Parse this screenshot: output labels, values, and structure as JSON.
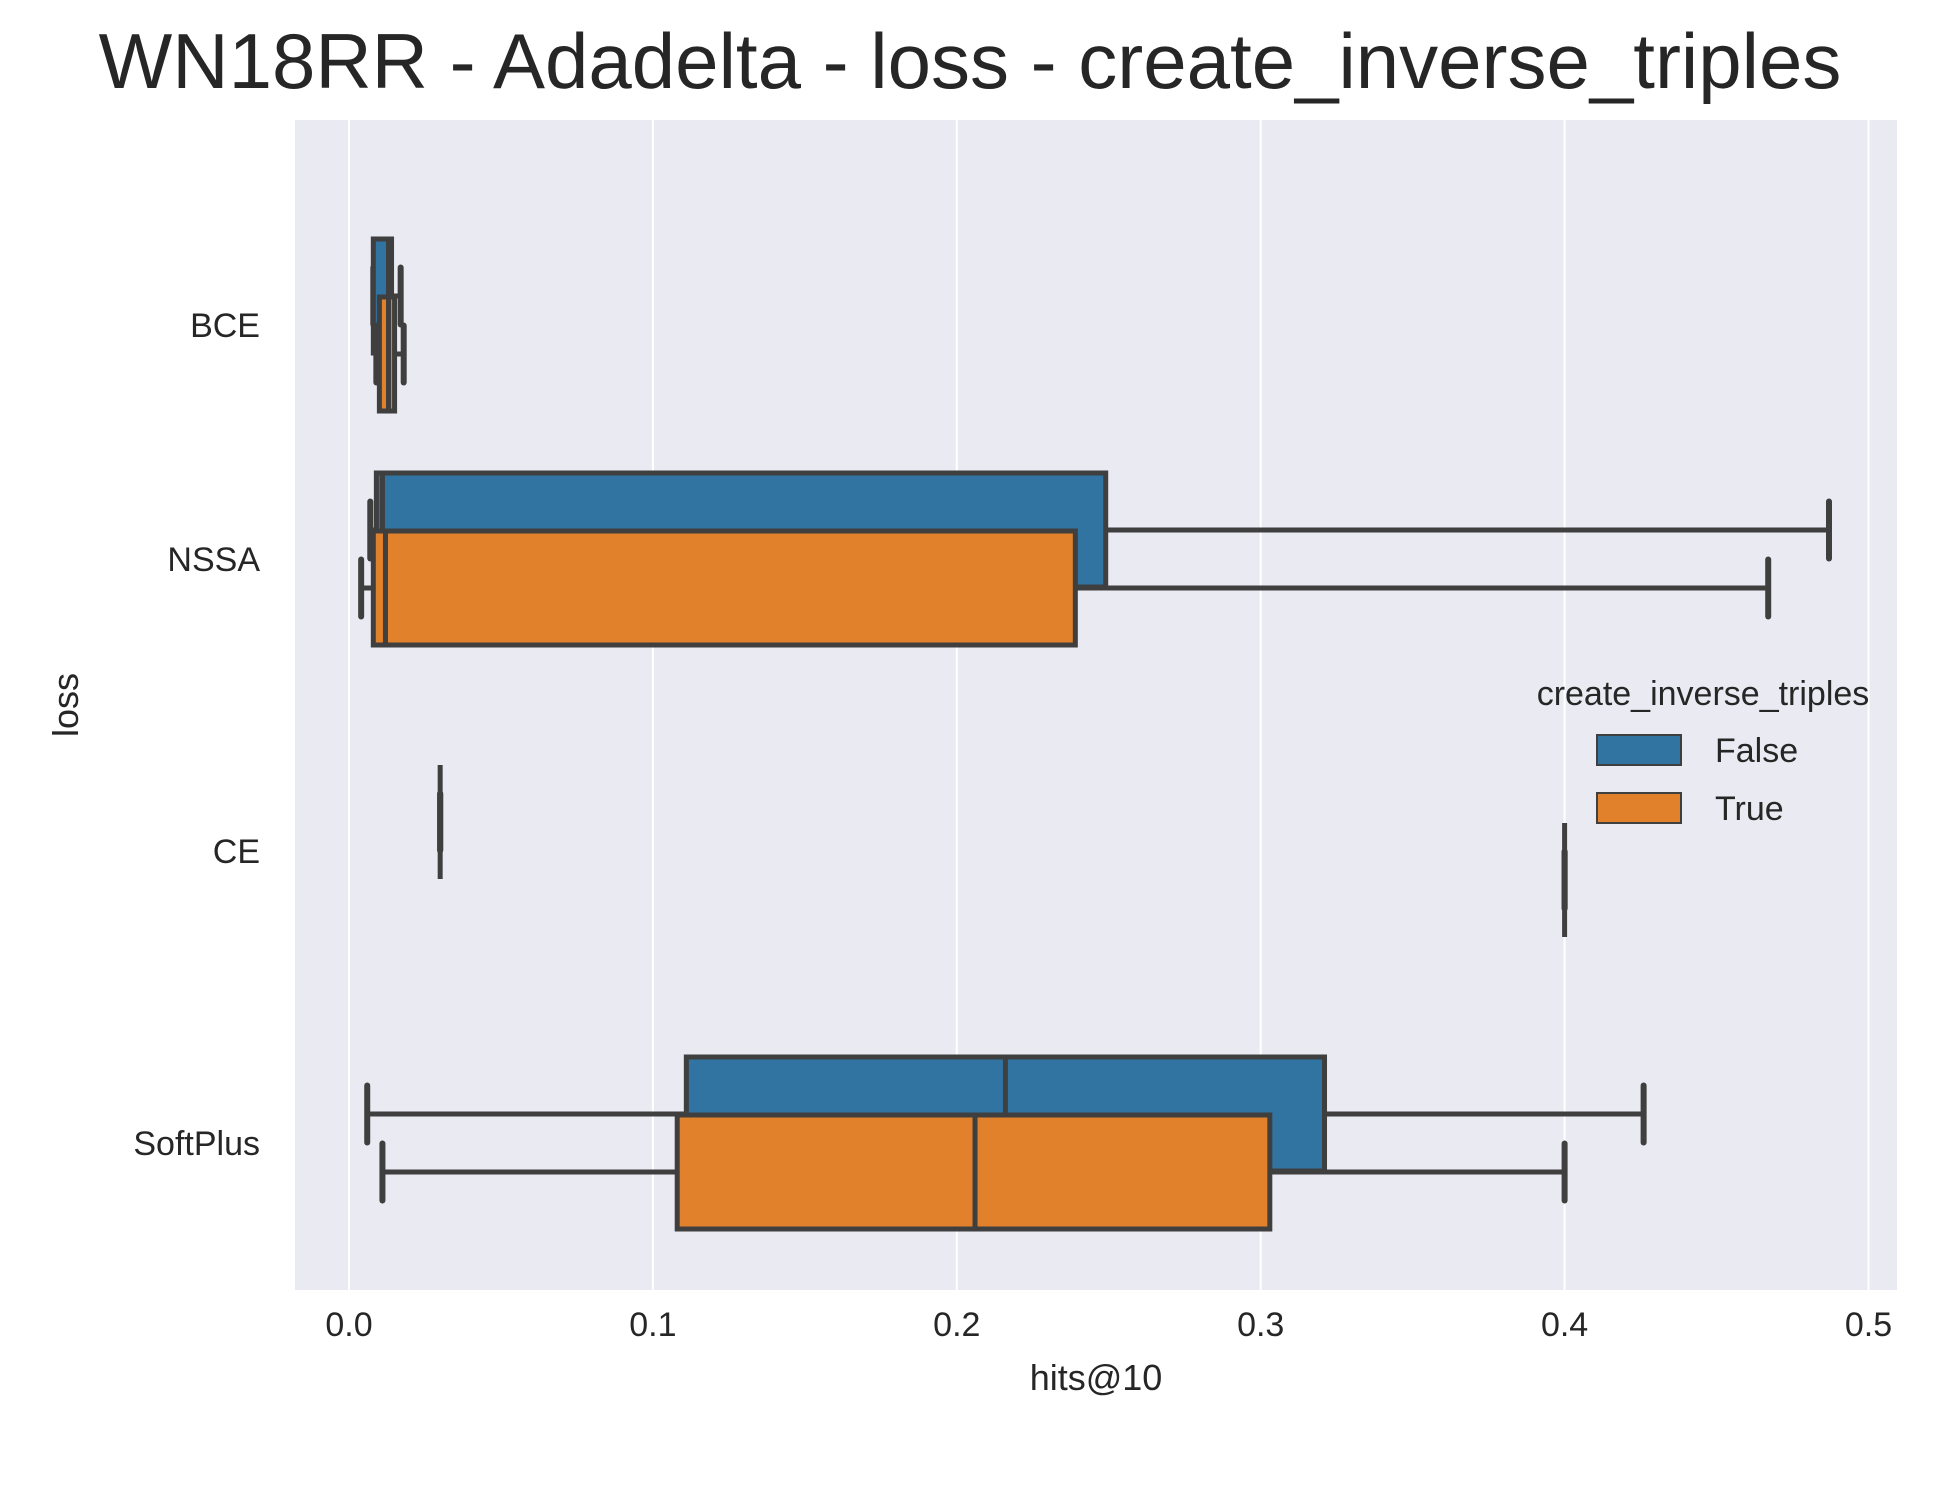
{
  "chart_data": {
    "type": "box",
    "title": "WN18RR - Adadelta - loss - create_inverse_triples",
    "xlabel": "hits@10",
    "ylabel": "loss",
    "xlim": [
      -0.019,
      0.511
    ],
    "x_ticks": [
      "0.0",
      "0.1",
      "0.2",
      "0.3",
      "0.4",
      "0.5"
    ],
    "x_tick_values": [
      0.0,
      0.1,
      0.2,
      0.3,
      0.4,
      0.5
    ],
    "categories": [
      "BCE",
      "NSSA",
      "CE",
      "SoftPlus"
    ],
    "grid": true,
    "legend_position": "right",
    "legend": {
      "title": "create_inverse_triples",
      "entries": [
        "False",
        "True"
      ]
    },
    "colors": {
      "False": "#3274a1",
      "True": "#e1812c",
      "background": "#eaeaf2",
      "grid": "#ffffff",
      "edge": "#3f3f3f"
    },
    "series": [
      {
        "name": "False",
        "boxes": [
          {
            "category": "BCE",
            "whisker_low": 0.008,
            "q1": 0.008,
            "median": 0.013,
            "q3": 0.014,
            "whisker_high": 0.017
          },
          {
            "category": "NSSA",
            "whisker_low": 0.007,
            "q1": 0.009,
            "median": 0.011,
            "q3": 0.249,
            "whisker_high": 0.487
          },
          {
            "category": "CE",
            "whisker_low": 0.03,
            "q1": 0.03,
            "median": 0.03,
            "q3": 0.03,
            "whisker_high": 0.03
          },
          {
            "category": "SoftPlus",
            "whisker_low": 0.006,
            "q1": 0.111,
            "median": 0.216,
            "q3": 0.321,
            "whisker_high": 0.426
          }
        ]
      },
      {
        "name": "True",
        "boxes": [
          {
            "category": "BCE",
            "whisker_low": 0.009,
            "q1": 0.01,
            "median": 0.013,
            "q3": 0.015,
            "whisker_high": 0.018
          },
          {
            "category": "NSSA",
            "whisker_low": 0.004,
            "q1": 0.008,
            "median": 0.012,
            "q3": 0.239,
            "whisker_high": 0.467
          },
          {
            "category": "CE",
            "whisker_low": 0.4,
            "q1": 0.4,
            "median": 0.4,
            "q3": 0.4,
            "whisker_high": 0.4
          },
          {
            "category": "SoftPlus",
            "whisker_low": 0.011,
            "q1": 0.108,
            "median": 0.206,
            "q3": 0.303,
            "whisker_high": 0.4
          }
        ]
      }
    ]
  }
}
